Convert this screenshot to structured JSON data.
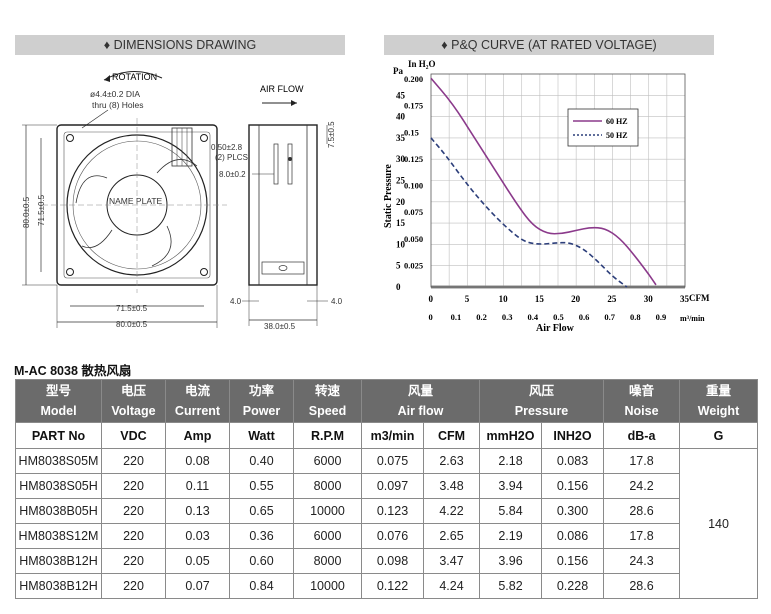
{
  "sections": {
    "dimensions_header": "♦ DIMENSIONS DRAWING",
    "pq_header": "♦ P&Q CURVE (AT RATED VOLTAGE)"
  },
  "drawing": {
    "rotation": "ROTATION",
    "hole_dia": "ø4.4±0.2 DIA",
    "holes_note": "thru (8) Holes",
    "name_plate": "NAME PLATE",
    "air_flow": "AIR FLOW",
    "dim_80_v": "80.0±0.5",
    "dim_715_v": "71.5±0.5",
    "dim_715_h": "71.5±0.5",
    "dim_80_h": "80.0±0.5",
    "terminal": "0.50±2.8",
    "plcs": "(2) PLCS",
    "dim_8": "8.0±0.2",
    "dim_75": "7.5±0.5",
    "dim_4a": "4.0",
    "dim_4b": "4.0",
    "dim_38": "38.0±0.5"
  },
  "chart_data": {
    "type": "line",
    "ylabel": "Static Pressure",
    "y_unit_pa": "Pa",
    "y_unit_inh2o": "In H₂O",
    "xlabel": "Air Flow",
    "x_unit_cfm": "CFM",
    "x_unit_m3": "m³/min",
    "y_ticks_pa": [
      "45",
      "40",
      "35",
      "30",
      "25",
      "20",
      "15",
      "10",
      "5",
      "0"
    ],
    "y_ticks_inh2o": [
      "0.200",
      "0.175",
      "0.15",
      "0.125",
      "0.100",
      "0.075",
      "0.050",
      "0.025"
    ],
    "x_ticks_cfm": [
      "0",
      "5",
      "10",
      "15",
      "20",
      "25",
      "30",
      "35"
    ],
    "x_ticks_m3": [
      "0",
      "0.1",
      "0.2",
      "0.3",
      "0.4",
      "0.5",
      "0.6",
      "0.7",
      "0.8",
      "0.9"
    ],
    "xlim_cfm": [
      0,
      35
    ],
    "ylim_pa": [
      0,
      50
    ],
    "legend_position": "top-right",
    "series": [
      {
        "name": "60 HZ",
        "color": "#8b3a8b",
        "x": [
          0,
          3,
          6,
          9,
          12,
          14,
          16,
          18,
          20,
          22,
          24,
          26,
          28,
          30,
          31
        ],
        "y": [
          49,
          43,
          35,
          27,
          19,
          14.5,
          12.5,
          12.5,
          13.3,
          14,
          13.8,
          11.5,
          7.5,
          3,
          0.5
        ]
      },
      {
        "name": "50 HZ",
        "color": "#2c3e7a",
        "x": [
          0,
          2,
          5,
          8,
          11,
          13,
          15,
          17,
          19,
          21,
          23,
          25,
          27
        ],
        "y": [
          35,
          31,
          24,
          18,
          13,
          10.5,
          10,
          10.3,
          10.5,
          9,
          6,
          2.5,
          0
        ]
      }
    ]
  },
  "model_title": "M-AC 8038 散热风扇",
  "table": {
    "head1": [
      {
        "cn": "型号",
        "en": "Model"
      },
      {
        "cn": "电压",
        "en": "Voltage"
      },
      {
        "cn": "电流",
        "en": "Current"
      },
      {
        "cn": "功率",
        "en": "Power"
      },
      {
        "cn": "转速",
        "en": "Speed"
      },
      {
        "cn": "风量",
        "en": "Air flow"
      },
      {
        "cn": "风压",
        "en": "Pressure"
      },
      {
        "cn": "噪音",
        "en": "Noise"
      },
      {
        "cn": "重量",
        "en": "Weight"
      }
    ],
    "head2": [
      "PART No",
      "VDC",
      "Amp",
      "Watt",
      "R.P.M",
      "m3/min",
      "CFM",
      "mmH2O",
      "INH2O",
      "dB-a",
      "G"
    ],
    "rows": [
      [
        "HM8038S05M",
        "220",
        "0.08",
        "0.40",
        "6000",
        "0.075",
        "2.63",
        "2.18",
        "0.083",
        "17.8"
      ],
      [
        "HM8038S05H",
        "220",
        "0.11",
        "0.55",
        "8000",
        "0.097",
        "3.48",
        "3.94",
        "0.156",
        "24.2"
      ],
      [
        "HM8038B05H",
        "220",
        "0.13",
        "0.65",
        "10000",
        "0.123",
        "4.22",
        "5.84",
        "0.300",
        "28.6"
      ],
      [
        "HM8038S12M",
        "220",
        "0.03",
        "0.36",
        "6000",
        "0.076",
        "2.65",
        "2.19",
        "0.086",
        "17.8"
      ],
      [
        "HM8038B12H",
        "220",
        "0.05",
        "0.60",
        "8000",
        "0.098",
        "3.47",
        "3.96",
        "0.156",
        "24.3"
      ],
      [
        "HM8038B12H",
        "220",
        "0.07",
        "0.84",
        "10000",
        "0.122",
        "4.24",
        "5.82",
        "0.228",
        "28.6"
      ]
    ],
    "weight": "140"
  }
}
